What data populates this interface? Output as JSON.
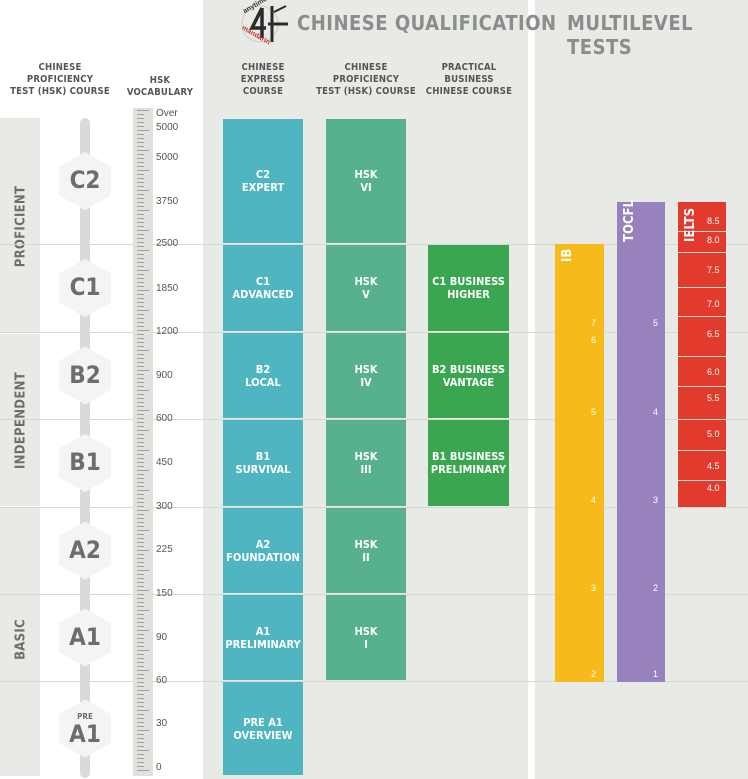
{
  "header": {
    "title_main": "CHINESE QUALIFICATION",
    "title_right": "MULTILEVEL TESTS",
    "logo_top": "anytime",
    "logo_bottom": "mandarin"
  },
  "columns": {
    "hsk_course": [
      "CHINESE",
      "PROFICIENCY",
      "TEST (HSK) COURSE"
    ],
    "hsk_vocab": [
      "HSK",
      "VOCABULARY"
    ],
    "express": [
      "CHINESE",
      "EXPRESS",
      "COURSE"
    ],
    "proficiency": [
      "CHINESE",
      "PROFICIENCY",
      "TEST (HSK) COURSE"
    ],
    "business": [
      "PRACTICAL",
      "BUSINESS",
      "CHINESE COURSE"
    ]
  },
  "bands": {
    "proficient": "PROFICIENT",
    "independent": "INDEPENDENT",
    "basic": "BASIC"
  },
  "levels": [
    {
      "code": "C2",
      "pre": ""
    },
    {
      "code": "C1",
      "pre": ""
    },
    {
      "code": "B2",
      "pre": ""
    },
    {
      "code": "B1",
      "pre": ""
    },
    {
      "code": "A2",
      "pre": ""
    },
    {
      "code": "A1",
      "pre": ""
    },
    {
      "code": "A1",
      "pre": "PRE"
    }
  ],
  "vocab": [
    "Over",
    "5000",
    "5000",
    "3750",
    "2500",
    "1850",
    "1200",
    "900",
    "600",
    "450",
    "300",
    "225",
    "150",
    "90",
    "60",
    "30",
    "0"
  ],
  "express_blocks": [
    {
      "l1": "C2",
      "l2": "EXPERT"
    },
    {
      "l1": "C1",
      "l2": "ADVANCED"
    },
    {
      "l1": "B2",
      "l2": "LOCAL"
    },
    {
      "l1": "B1",
      "l2": "SURVIVAL"
    },
    {
      "l1": "A2",
      "l2": "FOUNDATION"
    },
    {
      "l1": "A1",
      "l2": "PRELIMINARY"
    },
    {
      "l1": "PRE A1",
      "l2": "OVERVIEW"
    }
  ],
  "hsk_blocks": [
    {
      "l1": "HSK",
      "l2": "VI"
    },
    {
      "l1": "HSK",
      "l2": "V"
    },
    {
      "l1": "HSK",
      "l2": "IV"
    },
    {
      "l1": "HSK",
      "l2": "III"
    },
    {
      "l1": "HSK",
      "l2": "II"
    },
    {
      "l1": "HSK",
      "l2": "I"
    }
  ],
  "business_blocks": [
    {
      "l1": "C1 BUSINESS",
      "l2": "HIGHER"
    },
    {
      "l1": "B2 BUSINESS",
      "l2": "VANTAGE"
    },
    {
      "l1": "B1 BUSINESS",
      "l2": "PRELIMINARY"
    }
  ],
  "tests": {
    "ib": {
      "name": "IB",
      "color": "#f6bb1b",
      "scores": [
        "7",
        "6",
        "5",
        "4",
        "3",
        "2"
      ]
    },
    "tocfl": {
      "name": "TOCFL",
      "color": "#9782bd",
      "scores": [
        "5",
        "4",
        "3",
        "2",
        "1"
      ]
    },
    "ielts": {
      "name": "IELTS",
      "color": "#e23a2c",
      "scores": [
        "8.5",
        "8.0",
        "7.5",
        "7.0",
        "6.5",
        "6.0",
        "5.5",
        "5.0",
        "4.5",
        "4.0"
      ]
    }
  },
  "colors": {
    "express": "#4fb5c1",
    "hsk": "#56b18c",
    "business": "#3aa64f",
    "panel": "#e8eae6"
  }
}
